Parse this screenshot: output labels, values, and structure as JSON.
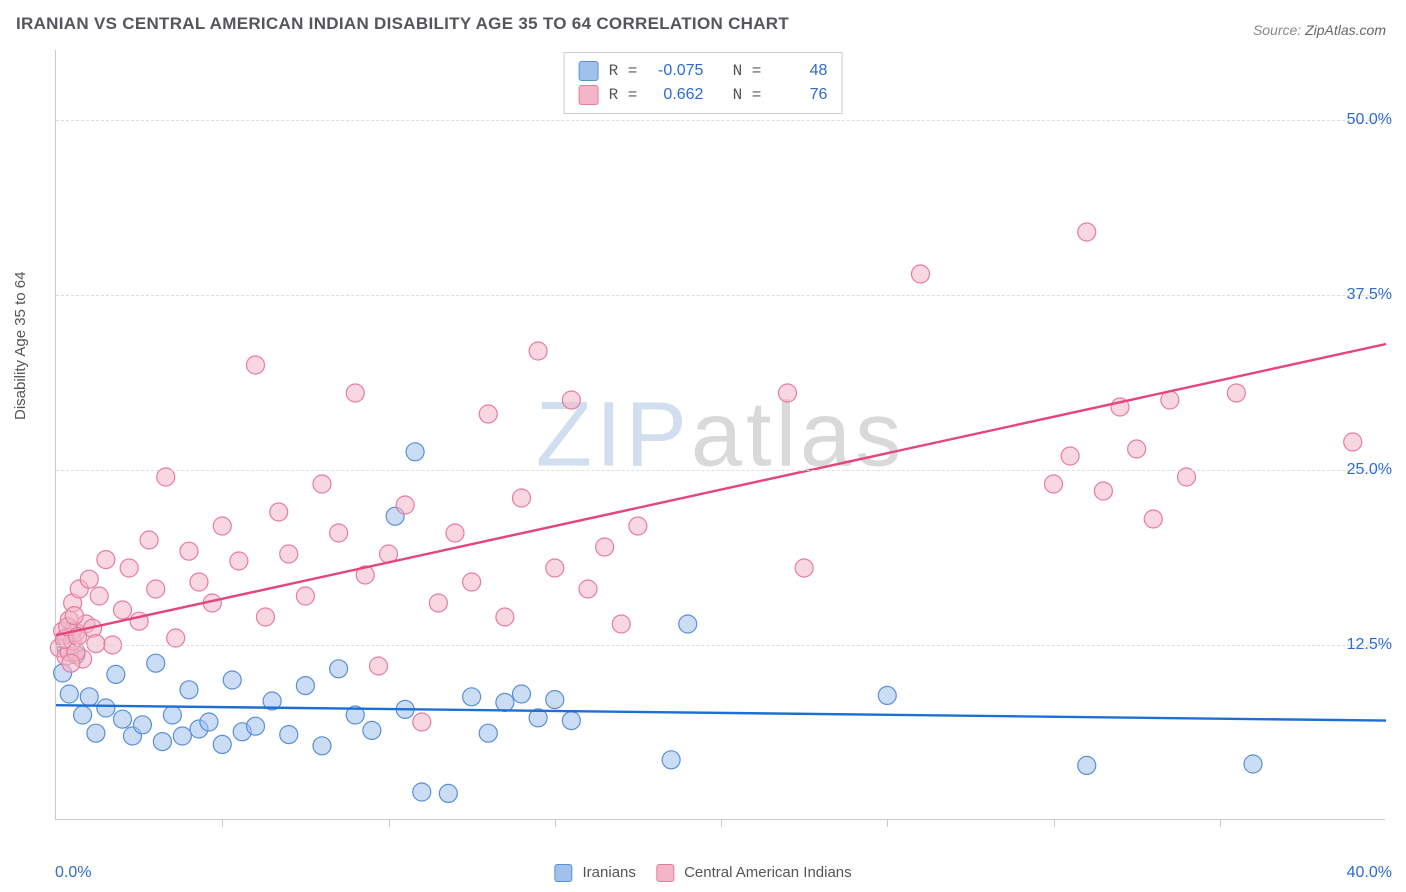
{
  "title": "IRANIAN VS CENTRAL AMERICAN INDIAN DISABILITY AGE 35 TO 64 CORRELATION CHART",
  "source_label": "Source:",
  "source_value": "ZipAtlas.com",
  "y_axis_label": "Disability Age 35 to 64",
  "watermark_a": "ZIP",
  "watermark_b": "atlas",
  "chart": {
    "type": "scatter",
    "xlim": [
      0,
      40
    ],
    "ylim": [
      0,
      55
    ],
    "y_ticks": [
      12.5,
      25.0,
      37.5,
      50.0
    ],
    "y_tick_labels": [
      "12.5%",
      "25.0%",
      "37.5%",
      "50.0%"
    ],
    "x_tick_left": "0.0%",
    "x_tick_right": "40.0%",
    "x_minor_count": 8,
    "background_color": "#ffffff",
    "grid_color": "#dddddd",
    "axis_color": "#cccccc",
    "marker_radius": 9,
    "marker_opacity": 0.55,
    "line_width": 2.4,
    "series": [
      {
        "name": "Iranians",
        "fill": "#9fc1ec",
        "stroke": "#5a8fd6",
        "line_color": "#1d6fd4",
        "R": "-0.075",
        "N": "48",
        "trend": {
          "x1": 0,
          "y1": 8.2,
          "x2": 40,
          "y2": 7.1
        },
        "points": [
          [
            0.2,
            10.5
          ],
          [
            0.3,
            12.3
          ],
          [
            0.4,
            9.0
          ],
          [
            0.5,
            13.5
          ],
          [
            0.6,
            11.8
          ],
          [
            0.8,
            7.5
          ],
          [
            1.0,
            8.8
          ],
          [
            1.2,
            6.2
          ],
          [
            1.5,
            8.0
          ],
          [
            1.8,
            10.4
          ],
          [
            2.0,
            7.2
          ],
          [
            2.3,
            6.0
          ],
          [
            2.6,
            6.8
          ],
          [
            3.0,
            11.2
          ],
          [
            3.2,
            5.6
          ],
          [
            3.5,
            7.5
          ],
          [
            3.8,
            6.0
          ],
          [
            4.0,
            9.3
          ],
          [
            4.3,
            6.5
          ],
          [
            4.6,
            7.0
          ],
          [
            5.0,
            5.4
          ],
          [
            5.3,
            10.0
          ],
          [
            5.6,
            6.3
          ],
          [
            6.0,
            6.7
          ],
          [
            6.5,
            8.5
          ],
          [
            7.0,
            6.1
          ],
          [
            7.5,
            9.6
          ],
          [
            8.0,
            5.3
          ],
          [
            8.5,
            10.8
          ],
          [
            9.0,
            7.5
          ],
          [
            9.5,
            6.4
          ],
          [
            10.2,
            21.7
          ],
          [
            10.5,
            7.9
          ],
          [
            11.0,
            2.0
          ],
          [
            11.8,
            1.9
          ],
          [
            12.5,
            8.8
          ],
          [
            13.0,
            6.2
          ],
          [
            13.5,
            8.4
          ],
          [
            14.0,
            9.0
          ],
          [
            14.5,
            7.3
          ],
          [
            15.0,
            8.6
          ],
          [
            15.5,
            7.1
          ],
          [
            18.5,
            4.3
          ],
          [
            19.0,
            14.0
          ],
          [
            25.0,
            8.9
          ],
          [
            31.0,
            3.9
          ],
          [
            36.0,
            4.0
          ],
          [
            10.8,
            26.3
          ]
        ]
      },
      {
        "name": "Central American Indians",
        "fill": "#f4b6c7",
        "stroke": "#e67ba1",
        "line_color": "#e4457f",
        "R": "0.662",
        "N": "76",
        "trend": {
          "x1": 0,
          "y1": 13.2,
          "x2": 40,
          "y2": 34.0
        },
        "points": [
          [
            0.1,
            12.3
          ],
          [
            0.2,
            13.5
          ],
          [
            0.3,
            11.7
          ],
          [
            0.3,
            13.0
          ],
          [
            0.4,
            14.3
          ],
          [
            0.4,
            12.0
          ],
          [
            0.5,
            15.5
          ],
          [
            0.5,
            12.8
          ],
          [
            0.6,
            13.4
          ],
          [
            0.7,
            16.5
          ],
          [
            0.8,
            11.5
          ],
          [
            0.9,
            14.0
          ],
          [
            1.0,
            17.2
          ],
          [
            1.1,
            13.7
          ],
          [
            1.3,
            16.0
          ],
          [
            1.5,
            18.6
          ],
          [
            1.7,
            12.5
          ],
          [
            2.0,
            15.0
          ],
          [
            2.2,
            18.0
          ],
          [
            2.5,
            14.2
          ],
          [
            2.8,
            20.0
          ],
          [
            3.0,
            16.5
          ],
          [
            3.3,
            24.5
          ],
          [
            3.6,
            13.0
          ],
          [
            4.0,
            19.2
          ],
          [
            4.3,
            17.0
          ],
          [
            4.7,
            15.5
          ],
          [
            5.0,
            21.0
          ],
          [
            5.5,
            18.5
          ],
          [
            6.0,
            32.5
          ],
          [
            6.3,
            14.5
          ],
          [
            6.7,
            22.0
          ],
          [
            7.0,
            19.0
          ],
          [
            7.5,
            16.0
          ],
          [
            8.0,
            24.0
          ],
          [
            8.5,
            20.5
          ],
          [
            9.0,
            30.5
          ],
          [
            9.3,
            17.5
          ],
          [
            9.7,
            11.0
          ],
          [
            10.0,
            19.0
          ],
          [
            10.5,
            22.5
          ],
          [
            11.0,
            7.0
          ],
          [
            11.5,
            15.5
          ],
          [
            12.0,
            20.5
          ],
          [
            12.5,
            17.0
          ],
          [
            13.0,
            29.0
          ],
          [
            13.5,
            14.5
          ],
          [
            14.0,
            23.0
          ],
          [
            14.5,
            33.5
          ],
          [
            15.0,
            18.0
          ],
          [
            15.5,
            30.0
          ],
          [
            16.0,
            16.5
          ],
          [
            16.5,
            19.5
          ],
          [
            17.0,
            14.0
          ],
          [
            17.5,
            21.0
          ],
          [
            22.0,
            30.5
          ],
          [
            22.5,
            18.0
          ],
          [
            26.0,
            39.0
          ],
          [
            30.0,
            24.0
          ],
          [
            30.5,
            26.0
          ],
          [
            31.0,
            42.0
          ],
          [
            31.5,
            23.5
          ],
          [
            32.0,
            29.5
          ],
          [
            32.5,
            26.5
          ],
          [
            33.0,
            21.5
          ],
          [
            33.5,
            30.0
          ],
          [
            34.0,
            24.5
          ],
          [
            35.5,
            30.5
          ],
          [
            39.0,
            27.0
          ],
          [
            1.2,
            12.6
          ],
          [
            0.6,
            12.0
          ],
          [
            0.25,
            12.9
          ],
          [
            0.35,
            13.8
          ],
          [
            0.45,
            11.2
          ],
          [
            0.55,
            14.6
          ],
          [
            0.65,
            13.1
          ]
        ]
      }
    ]
  },
  "legend_bottom": [
    {
      "label": "Iranians",
      "fill": "#9fc1ec",
      "stroke": "#5a8fd6"
    },
    {
      "label": "Central American Indians",
      "fill": "#f4b6c7",
      "stroke": "#e67ba1"
    }
  ]
}
